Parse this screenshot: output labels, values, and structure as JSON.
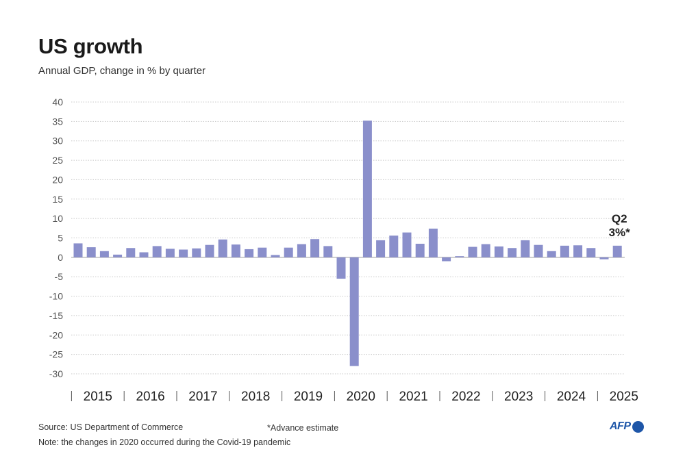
{
  "title": "US growth",
  "subtitle": "Annual GDP, change in % by quarter",
  "footer": {
    "source": "Source: US Department of Commerce",
    "note": "Note: the changes in 2020 occurred during the Covid-19 pandemic",
    "estimate": "*Advance estimate"
  },
  "logo": {
    "text": "AFP"
  },
  "colors": {
    "bar": "#8a8fcb",
    "grid": "#c8c8c8",
    "axis_text": "#333333"
  },
  "chart_data": {
    "type": "bar",
    "title": "US growth",
    "subtitle": "Annual GDP, change in % by quarter",
    "ylim": [
      -30,
      40
    ],
    "yticks": [
      40,
      35,
      30,
      25,
      20,
      15,
      10,
      5,
      0,
      -5,
      -10,
      -15,
      -20,
      -25,
      -30
    ],
    "grid": true,
    "year_labels": [
      "2015",
      "2016",
      "2017",
      "2018",
      "2019",
      "2020",
      "2021",
      "2022",
      "2023",
      "2024",
      "2025"
    ],
    "quarters_per_year": 4,
    "values": [
      3.6,
      2.6,
      1.6,
      0.7,
      2.4,
      1.3,
      2.9,
      2.2,
      2.0,
      2.3,
      3.2,
      4.6,
      3.3,
      2.1,
      2.5,
      0.6,
      2.5,
      3.4,
      4.7,
      2.9,
      -5.5,
      -28.0,
      35.2,
      4.4,
      5.6,
      6.4,
      3.5,
      7.4,
      -1.0,
      0.3,
      2.7,
      3.4,
      2.8,
      2.4,
      4.4,
      3.2,
      1.6,
      3.0,
      3.1,
      2.4,
      -0.5,
      3.0
    ],
    "annotation": {
      "quarter_label": "Q2",
      "value_label": "3%*"
    }
  }
}
